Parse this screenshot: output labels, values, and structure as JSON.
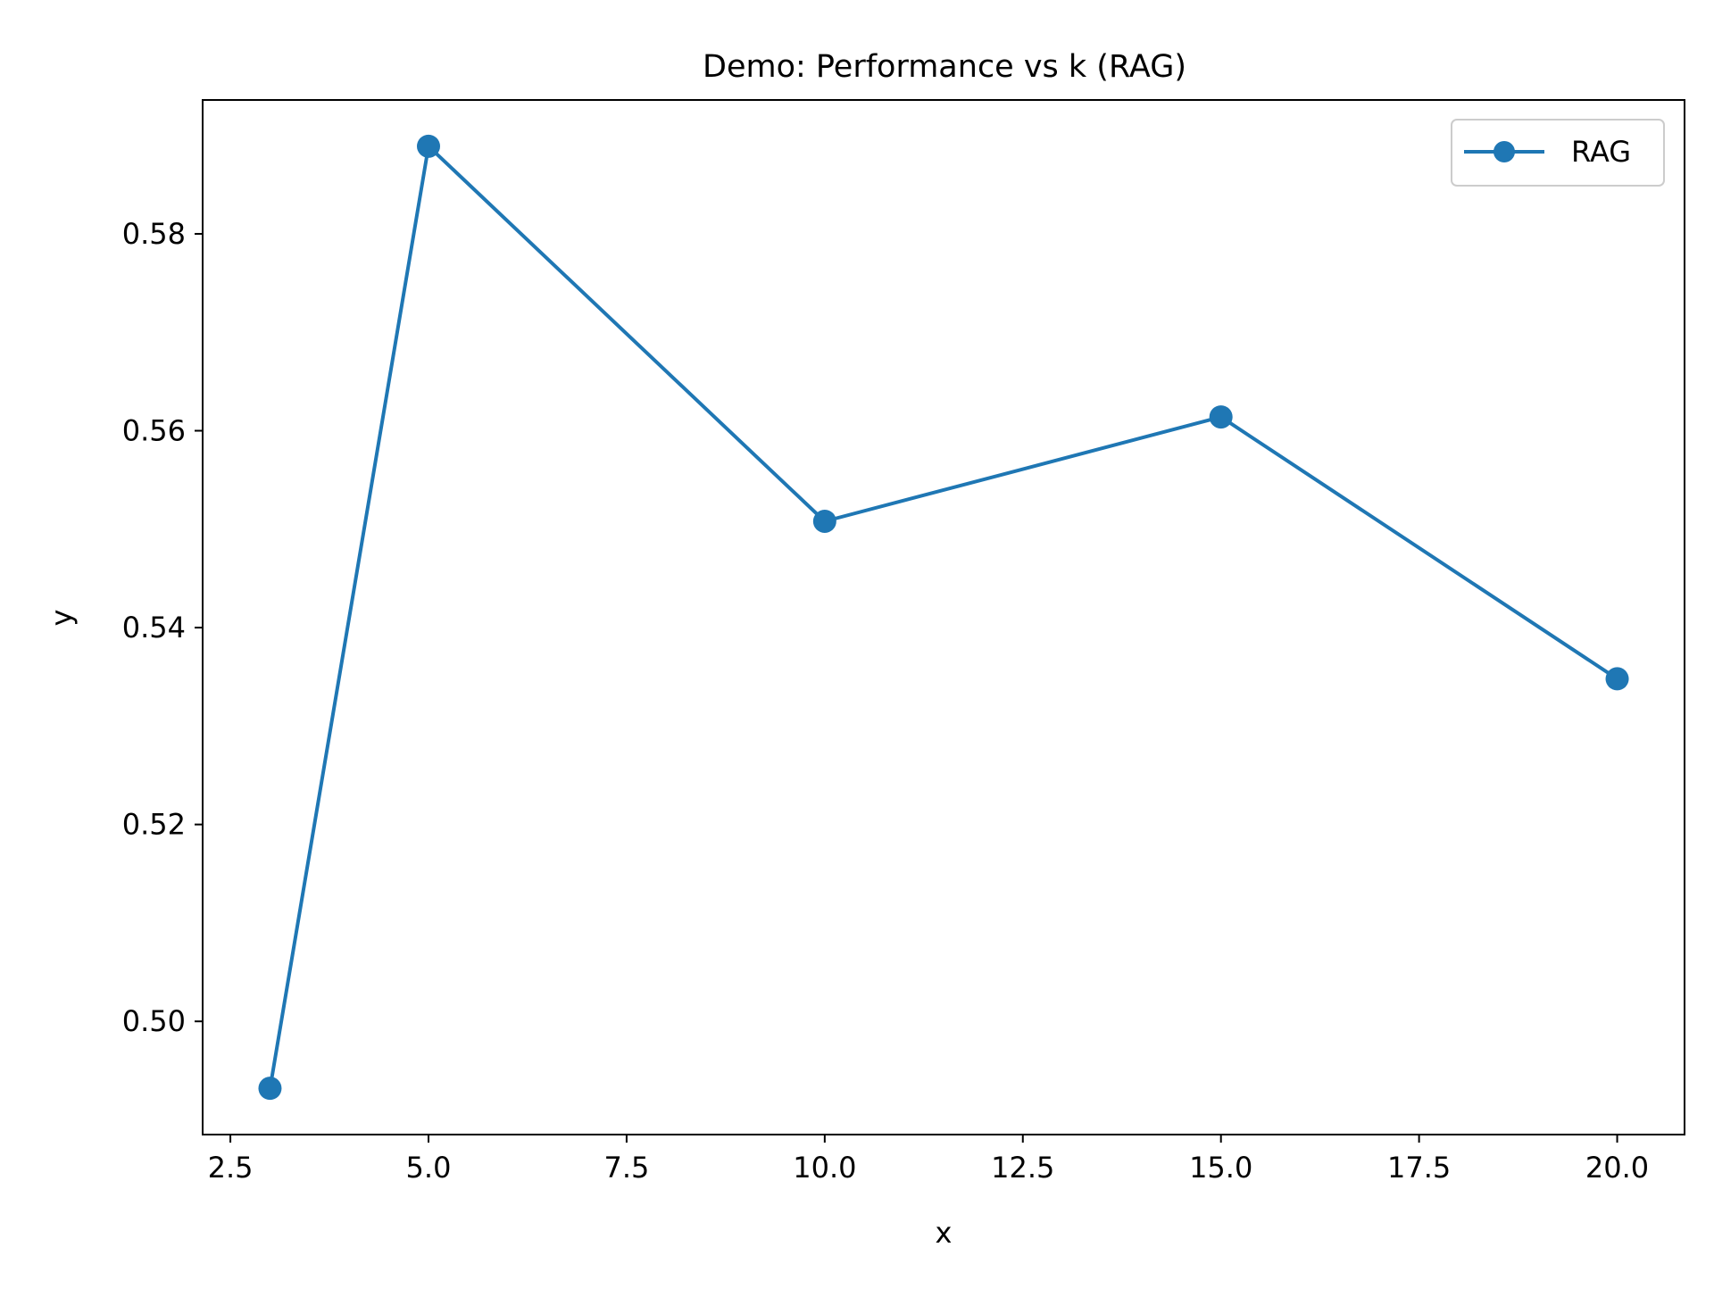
{
  "chart_data": {
    "type": "line",
    "title": "Demo: Performance vs k (RAG)",
    "xlabel": "x",
    "ylabel": "y",
    "x": [
      3,
      5,
      10,
      15,
      20
    ],
    "series": [
      {
        "name": "RAG",
        "values": [
          0.4932,
          0.5889,
          0.5508,
          0.5614,
          0.5348
        ]
      }
    ],
    "xlim": [
      2.15,
      20.85
    ],
    "ylim": [
      0.4885,
      0.5936
    ],
    "xticks": [
      2.5,
      5.0,
      7.5,
      10.0,
      12.5,
      15.0,
      17.5,
      20.0
    ],
    "xtick_labels": [
      "2.5",
      "5.0",
      "7.5",
      "10.0",
      "12.5",
      "15.0",
      "17.5",
      "20.0"
    ],
    "yticks": [
      0.5,
      0.52,
      0.54,
      0.56,
      0.58
    ],
    "ytick_labels": [
      "0.50",
      "0.52",
      "0.54",
      "0.56",
      "0.58"
    ],
    "grid": false,
    "legend_position": "upper right",
    "colors": {
      "series": "#1f77b4",
      "axes": "#000000",
      "legend_border": "#cccccc"
    }
  }
}
